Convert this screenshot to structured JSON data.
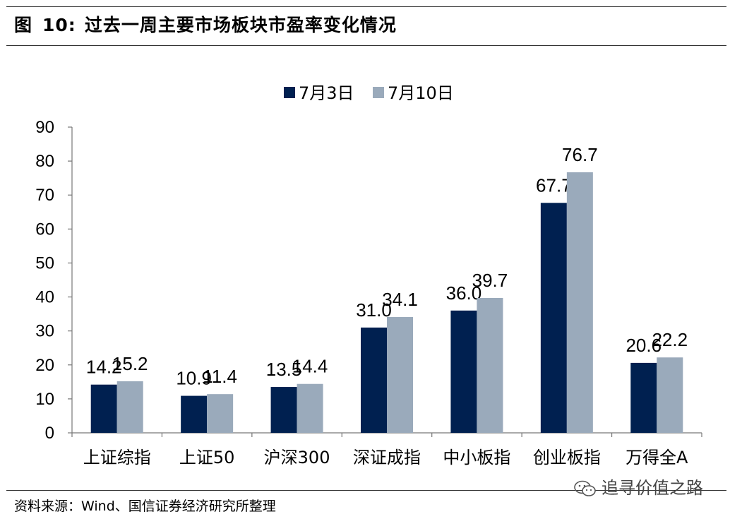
{
  "header": {
    "figure_label": "图",
    "figure_number": "10:",
    "title": "过去一周主要市场板块市盈率变化情况"
  },
  "footer": {
    "source": "资料来源：Wind、国信证券经济研究所整理",
    "watermark": "追寻价值之路",
    "watermark_icon": "wechat-icon"
  },
  "chart_data": {
    "type": "bar",
    "categories": [
      "上证综指",
      "上证50",
      "沪深300",
      "深证成指",
      "中小板指",
      "创业板指",
      "万得全A"
    ],
    "series": [
      {
        "name": "7月3日",
        "values": [
          14.2,
          10.9,
          13.5,
          31.0,
          36.0,
          67.7,
          20.6
        ],
        "labels": [
          "14.2",
          "10.9",
          "13.5",
          "31.0",
          "36.0",
          "67.7",
          "20.6"
        ],
        "color": "#002050"
      },
      {
        "name": "7月10日",
        "values": [
          15.2,
          11.4,
          14.4,
          34.1,
          39.7,
          76.7,
          22.2
        ],
        "labels": [
          "15.2",
          "11.4",
          "14.4",
          "34.1",
          "39.7",
          "76.7",
          "22.2"
        ],
        "color": "#9aaabb"
      }
    ],
    "ylim": [
      0,
      90
    ],
    "yticks": [
      "0",
      "10",
      "20",
      "30",
      "40",
      "50",
      "60",
      "70",
      "80",
      "90"
    ],
    "legend_position": "top-center",
    "grid": false
  }
}
